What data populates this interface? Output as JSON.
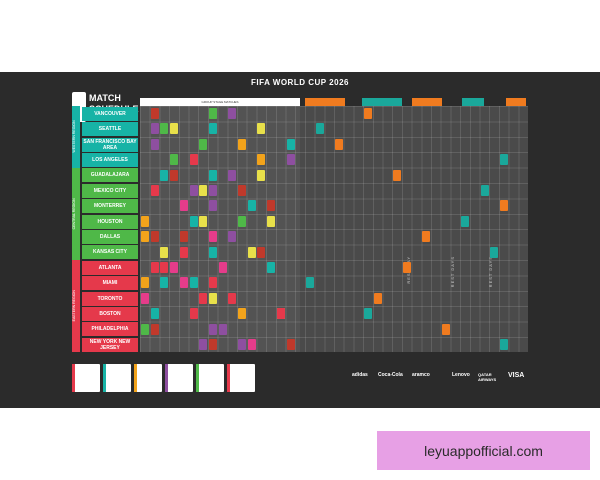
{
  "poster": {
    "title": "FIFA WORLD CUP 2026",
    "logo_line1": "MATCH",
    "logo_line2": "SCHEDULE",
    "group_stage_label": "GROUP STAGE MATCHES",
    "rest_day_label": "REST DAY",
    "rest_days_label": "REST DAYS"
  },
  "regions": [
    {
      "name": "WESTERN REGION",
      "color": "#17b3a6"
    },
    {
      "name": "CENTRAL REGION",
      "color": "#4fb848"
    },
    {
      "name": "EASTERN REGION",
      "color": "#e5394b"
    }
  ],
  "cities": [
    {
      "name": "VANCOUVER",
      "color": "#17b3a6"
    },
    {
      "name": "SEATTLE",
      "color": "#17b3a6"
    },
    {
      "name": "SAN FRANCISCO BAY AREA",
      "color": "#17b3a6"
    },
    {
      "name": "LOS ANGELES",
      "color": "#17b3a6"
    },
    {
      "name": "GUADALAJARA",
      "color": "#4fb848"
    },
    {
      "name": "MEXICO CITY",
      "color": "#4fb848"
    },
    {
      "name": "MONTERREY",
      "color": "#4fb848"
    },
    {
      "name": "HOUSTON",
      "color": "#4fb848"
    },
    {
      "name": "DALLAS",
      "color": "#4fb848"
    },
    {
      "name": "KANSAS CITY",
      "color": "#4fb848"
    },
    {
      "name": "ATLANTA",
      "color": "#e5394b"
    },
    {
      "name": "MIAMI",
      "color": "#e5394b"
    },
    {
      "name": "TORONTO",
      "color": "#e5394b"
    },
    {
      "name": "BOSTON",
      "color": "#e5394b"
    },
    {
      "name": "PHILADELPHIA",
      "color": "#e5394b"
    },
    {
      "name": "NEW YORK NEW JERSEY",
      "color": "#e5394b"
    }
  ],
  "stage_colors": {
    "round32": "#f07b1f",
    "round16": "#1aa89b",
    "quarter": "#f07b1f",
    "semi": "#1aa89b",
    "final": "#f07b1f"
  },
  "sponsors": [
    "adidas",
    "Coca-Cola",
    "aramco",
    "Lenovo",
    "QATAR AIRWAYS",
    "VISA"
  ],
  "watermark": "leyuappofficial.com"
}
